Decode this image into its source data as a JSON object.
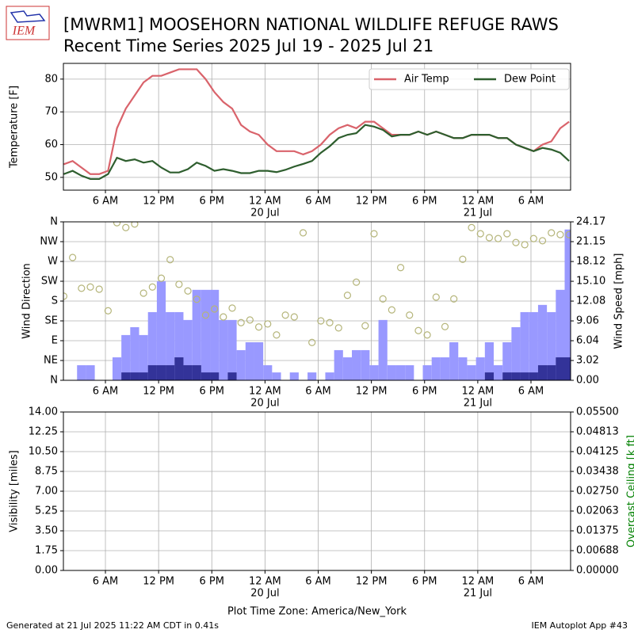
{
  "title": [
    "[MWRM1] MOOSEHORN NATIONAL WILDLIFE REFUGE RAWS",
    "Recent Time Series 2025 Jul 19 - 2025 Jul 21"
  ],
  "footer": {
    "left": "Generated at 21 Jul 2025 11:22 AM CDT in 0.41s",
    "right": "IEM Autoplot App #43"
  },
  "logo": "IEM",
  "chart_data": [
    {
      "type": "line",
      "ylabel": "Temperature [F]",
      "ylim": [
        46.1,
        84.8
      ],
      "yticks": [
        50,
        60,
        70,
        80
      ],
      "grid": true,
      "legend": "upper right",
      "xlim": [
        1.26,
        58.47
      ],
      "xticks": [
        {
          "value": 6,
          "label": "6 AM"
        },
        {
          "value": 12,
          "label": "12 PM"
        },
        {
          "value": 18,
          "label": "6 PM"
        },
        {
          "value": 24,
          "label": "12 AM"
        },
        {
          "value": 30,
          "label": "6 AM"
        },
        {
          "value": 36,
          "label": "12 PM"
        },
        {
          "value": 42,
          "label": "6 PM"
        },
        {
          "value": 48,
          "label": "12 AM"
        },
        {
          "value": 54,
          "label": "6 AM"
        }
      ],
      "xtick_dates": [
        {
          "value": 24,
          "label": "20 Jul"
        },
        {
          "value": 48,
          "label": "21 Jul"
        }
      ],
      "x": [
        1.3,
        2.3,
        3.3,
        4.3,
        5.3,
        6.3,
        7.3,
        8.3,
        9.3,
        10.3,
        11.3,
        12.3,
        13.3,
        14.3,
        15.3,
        16.3,
        17.3,
        18.3,
        19.3,
        20.3,
        21.3,
        22.3,
        23.3,
        24.3,
        25.3,
        26.3,
        27.3,
        28.3,
        29.3,
        30.3,
        31.3,
        32.3,
        33.3,
        34.3,
        35.3,
        36.3,
        37.3,
        38.3,
        39.3,
        40.3,
        41.3,
        42.3,
        43.3,
        44.3,
        45.3,
        46.3,
        47.3,
        48.3,
        49.3,
        50.3,
        51.3,
        52.3,
        53.3,
        54.3,
        55.3,
        56.3,
        57.3,
        58.3
      ],
      "series": [
        {
          "name": "Air Temp",
          "color": "#d9636b",
          "values": [
            54,
            55,
            53,
            51,
            51,
            52,
            65,
            71,
            75,
            79,
            81,
            81,
            82,
            83,
            83,
            83,
            80,
            76,
            73,
            71,
            66,
            64,
            63,
            60,
            58,
            58,
            58,
            57,
            58,
            60,
            63,
            65,
            66,
            65,
            67,
            67,
            65,
            63,
            63,
            63,
            64,
            63,
            64,
            63,
            62,
            62,
            63,
            63,
            63,
            62,
            62,
            60,
            59,
            58,
            60,
            61,
            65,
            67
          ]
        },
        {
          "name": "Dew Point",
          "color": "#2e5e2e",
          "values": [
            51,
            52,
            50.5,
            49.5,
            49.5,
            51,
            56,
            55,
            55.5,
            54.5,
            55,
            53,
            51.5,
            51.5,
            52.5,
            54.5,
            53.5,
            52,
            52.5,
            52,
            51.3,
            51.3,
            52,
            52,
            51.6,
            52.3,
            53.3,
            54.1,
            55,
            57.5,
            59.5,
            62,
            63,
            63.5,
            66,
            65.5,
            64.5,
            62.5,
            63,
            63,
            64,
            63,
            64,
            63,
            62,
            62,
            63,
            63,
            63,
            62,
            62,
            60,
            59,
            58,
            59,
            58.5,
            57.5,
            55
          ]
        }
      ]
    },
    {
      "type": "bar",
      "ylabel": "Wind Direction",
      "y2label": "Wind Speed [mph]",
      "grid": true,
      "ylim": [
        0,
        360
      ],
      "yticks": [
        {
          "value": 0,
          "label": "N"
        },
        {
          "value": 45,
          "label": "NE"
        },
        {
          "value": 90,
          "label": "E"
        },
        {
          "value": 135,
          "label": "SE"
        },
        {
          "value": 180,
          "label": "S"
        },
        {
          "value": 225,
          "label": "SW"
        },
        {
          "value": 270,
          "label": "W"
        },
        {
          "value": 315,
          "label": "NW"
        },
        {
          "value": 360,
          "label": "N"
        }
      ],
      "y2lim": [
        0,
        24.17
      ],
      "y2ticks": [
        {
          "value": 0,
          "label": "0.00"
        },
        3.02,
        6.04,
        9.06,
        12.08,
        {
          "value": 15.1,
          "label": "15.10"
        },
        18.12,
        21.15,
        24.17
      ],
      "xlim": [
        1.26,
        58.47
      ],
      "xticks": [
        {
          "value": 6,
          "label": "6 AM"
        },
        {
          "value": 12,
          "label": "12 PM"
        },
        {
          "value": 18,
          "label": "6 PM"
        },
        {
          "value": 24,
          "label": "12 AM"
        },
        {
          "value": 30,
          "label": "6 AM"
        },
        {
          "value": 36,
          "label": "12 PM"
        },
        {
          "value": 42,
          "label": "6 PM"
        },
        {
          "value": 48,
          "label": "12 AM"
        },
        {
          "value": 54,
          "label": "6 AM"
        }
      ],
      "xtick_dates": [
        {
          "value": 24,
          "label": "20 Jul"
        },
        {
          "value": 48,
          "label": "21 Jul"
        }
      ],
      "x": [
        1.3,
        2.3,
        3.3,
        4.3,
        5.3,
        6.3,
        7.3,
        8.3,
        9.3,
        10.3,
        11.3,
        12.3,
        13.3,
        14.3,
        15.3,
        16.3,
        17.3,
        18.3,
        19.3,
        20.3,
        21.3,
        22.3,
        23.3,
        24.3,
        25.3,
        26.3,
        27.3,
        28.3,
        29.3,
        30.3,
        31.3,
        32.3,
        33.3,
        34.3,
        35.3,
        36.3,
        37.3,
        38.3,
        39.3,
        40.3,
        41.3,
        42.3,
        43.3,
        44.3,
        45.3,
        46.3,
        47.3,
        48.3,
        49.3,
        50.3,
        51.3,
        52.3,
        53.3,
        54.3,
        55.3,
        56.3,
        57.3,
        58.3
      ],
      "series": [
        {
          "type": "bar",
          "axis": "y2",
          "color": "#9999ff",
          "x": [
            3.3,
            4.3,
            5.3,
            6.3,
            7.3,
            8.3,
            9.3,
            10.3,
            11.3,
            12.3,
            13.3,
            14.3,
            15.3,
            16.3,
            17.3,
            18.3,
            19.3,
            20.3,
            21.3,
            22.3,
            23.3,
            24.3,
            25.3,
            26.3,
            27.3,
            28.3,
            29.3,
            30.3,
            31.3,
            32.3,
            33.3,
            34.3,
            35.3,
            36.3,
            37.3,
            38.3,
            39.3,
            40.3,
            41.3,
            42.3,
            43.3,
            44.3,
            45.3,
            46.3,
            47.3,
            48.3,
            49.3,
            50.3,
            51.3,
            52.3,
            53.3,
            54.3,
            55.3,
            56.3,
            57.3,
            58.3
          ],
          "values": [
            2.3,
            2.3,
            0,
            0,
            3.5,
            6.9,
            8.1,
            6.9,
            10.4,
            15.1,
            10.4,
            10.4,
            9.2,
            13.8,
            13.8,
            13.8,
            9.2,
            9.2,
            4.6,
            5.8,
            5.8,
            2.3,
            1.2,
            0,
            1.2,
            0,
            1.2,
            0,
            1.2,
            4.6,
            3.5,
            4.6,
            4.6,
            2.3,
            9.2,
            2.3,
            2.3,
            2.3,
            0,
            2.3,
            3.5,
            3.5,
            5.8,
            3.5,
            2.3,
            3.5,
            5.8,
            2.3,
            5.8,
            8.1,
            10.4,
            10.4,
            11.5,
            10.4,
            13.8,
            23
          ]
        },
        {
          "type": "bar",
          "axis": "y2",
          "color": "#333399",
          "x": [
            3.3,
            4.3,
            5.3,
            6.3,
            7.3,
            8.3,
            9.3,
            10.3,
            11.3,
            12.3,
            13.3,
            14.3,
            15.3,
            16.3,
            17.3,
            18.3,
            19.3,
            20.3,
            21.3,
            22.3,
            23.3,
            24.3,
            25.3,
            26.3,
            27.3,
            28.3,
            29.3,
            30.3,
            31.3,
            32.3,
            33.3,
            34.3,
            35.3,
            36.3,
            37.3,
            38.3,
            39.3,
            40.3,
            41.3,
            42.3,
            43.3,
            44.3,
            45.3,
            46.3,
            47.3,
            48.3,
            49.3,
            50.3,
            51.3,
            52.3,
            53.3,
            54.3,
            55.3,
            56.3,
            57.3,
            58.3
          ],
          "values": [
            0,
            0,
            0,
            0,
            0,
            1.2,
            1.2,
            1.2,
            2.3,
            2.3,
            2.3,
            3.5,
            2.3,
            2.3,
            1.2,
            1.2,
            0,
            1.2,
            0,
            0,
            0,
            0,
            0,
            0,
            0,
            0,
            0,
            0,
            0,
            0,
            0,
            0,
            0,
            0,
            0,
            0,
            0,
            0,
            0,
            0,
            0,
            0,
            0,
            0,
            0,
            0,
            1.2,
            0,
            1.2,
            1.2,
            1.2,
            1.2,
            2.3,
            2.3,
            3.5,
            3.5
          ]
        },
        {
          "type": "scatter",
          "color": "#b5b57a",
          "values": [
            191,
            279,
            209,
            212,
            207,
            158,
            358,
            347,
            355,
            198,
            212,
            232,
            274,
            218,
            203,
            184,
            148,
            162,
            144,
            164,
            131,
            137,
            121,
            128,
            103,
            148,
            144,
            335,
            86,
            135,
            131,
            119,
            193,
            223,
            124,
            333,
            185,
            160,
            256,
            148,
            113,
            103,
            189,
            122,
            185,
            275,
            347,
            333,
            324,
            322,
            333,
            313,
            308,
            322,
            317,
            335,
            331,
            331
          ]
        }
      ]
    },
    {
      "type": "line",
      "ylabel": "Visibility [miles]",
      "y2label": "Overcast Ceiling [k ft]",
      "y2label_color": "#008000",
      "grid": true,
      "xlabel": "Plot Time Zone: America/New_York",
      "ylim": [
        0,
        14
      ],
      "yticks": [
        {
          "value": 0,
          "label": "0.00"
        },
        1.75,
        {
          "value": 3.5,
          "label": "3.50"
        },
        5.25,
        {
          "value": 7,
          "label": "7.00"
        },
        8.75,
        {
          "value": 10.5,
          "label": "10.50"
        },
        12.25,
        {
          "value": 14,
          "label": "14.00"
        }
      ],
      "y2lim": [
        0,
        0.055
      ],
      "y2ticks": [
        {
          "value": 0,
          "label": "0.00000"
        },
        {
          "value": 0.006875,
          "label": "0.00688"
        },
        0.01375,
        {
          "value": 0.020625,
          "label": "0.02063"
        },
        {
          "value": 0.0275,
          "label": "0.02750"
        },
        {
          "value": 0.034375,
          "label": "0.03438"
        },
        0.04125,
        {
          "value": 0.048125,
          "label": "0.04813"
        },
        {
          "value": 0.055,
          "label": "0.05500"
        }
      ],
      "xlim": [
        1.26,
        58.47
      ],
      "xticks": [
        {
          "value": 6,
          "label": "6 AM"
        },
        {
          "value": 12,
          "label": "12 PM"
        },
        {
          "value": 18,
          "label": "6 PM"
        },
        {
          "value": 24,
          "label": "12 AM"
        },
        {
          "value": 30,
          "label": "6 AM"
        },
        {
          "value": 36,
          "label": "12 PM"
        },
        {
          "value": 42,
          "label": "6 PM"
        },
        {
          "value": 48,
          "label": "12 AM"
        },
        {
          "value": 54,
          "label": "6 AM"
        }
      ],
      "xtick_dates": [
        {
          "value": 24,
          "label": "20 Jul"
        },
        {
          "value": 48,
          "label": "21 Jul"
        }
      ],
      "series": []
    }
  ]
}
